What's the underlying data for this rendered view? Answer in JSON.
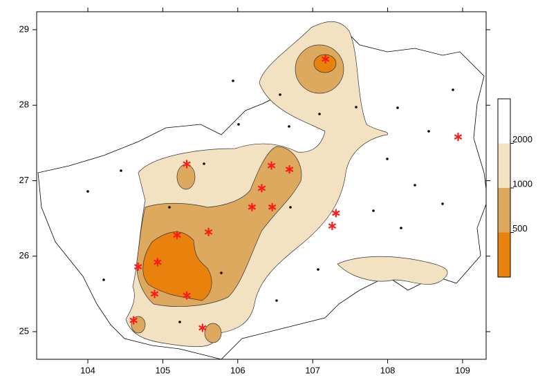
{
  "chart_data": {
    "type": "map",
    "xlim": [
      103.317,
      109.314
    ],
    "ylim": [
      24.634,
      29.238
    ],
    "xticks": [
      104,
      105,
      106,
      107,
      108,
      109
    ],
    "yticks": [
      25,
      26,
      27,
      28,
      29
    ],
    "stations": {
      "color": "#ff1a1a",
      "x": [
        107.17,
        105.32,
        106.45,
        106.69,
        106.32,
        106.19,
        106.46,
        107.31,
        107.26,
        105.61,
        105.19,
        104.67,
        104.93,
        104.89,
        105.32,
        104.61,
        105.53,
        108.94
      ],
      "y": [
        28.61,
        27.22,
        27.2,
        27.15,
        26.9,
        26.65,
        26.65,
        26.57,
        26.4,
        26.32,
        26.28,
        25.86,
        25.92,
        25.5,
        25.48,
        25.15,
        25.05,
        27.58
      ]
    },
    "colorbar": {
      "ticks": [
        500,
        1000,
        2000
      ],
      "colors": [
        "#e8820c",
        "#dca95e",
        "#f2e2c2",
        "#ffffff"
      ]
    }
  }
}
